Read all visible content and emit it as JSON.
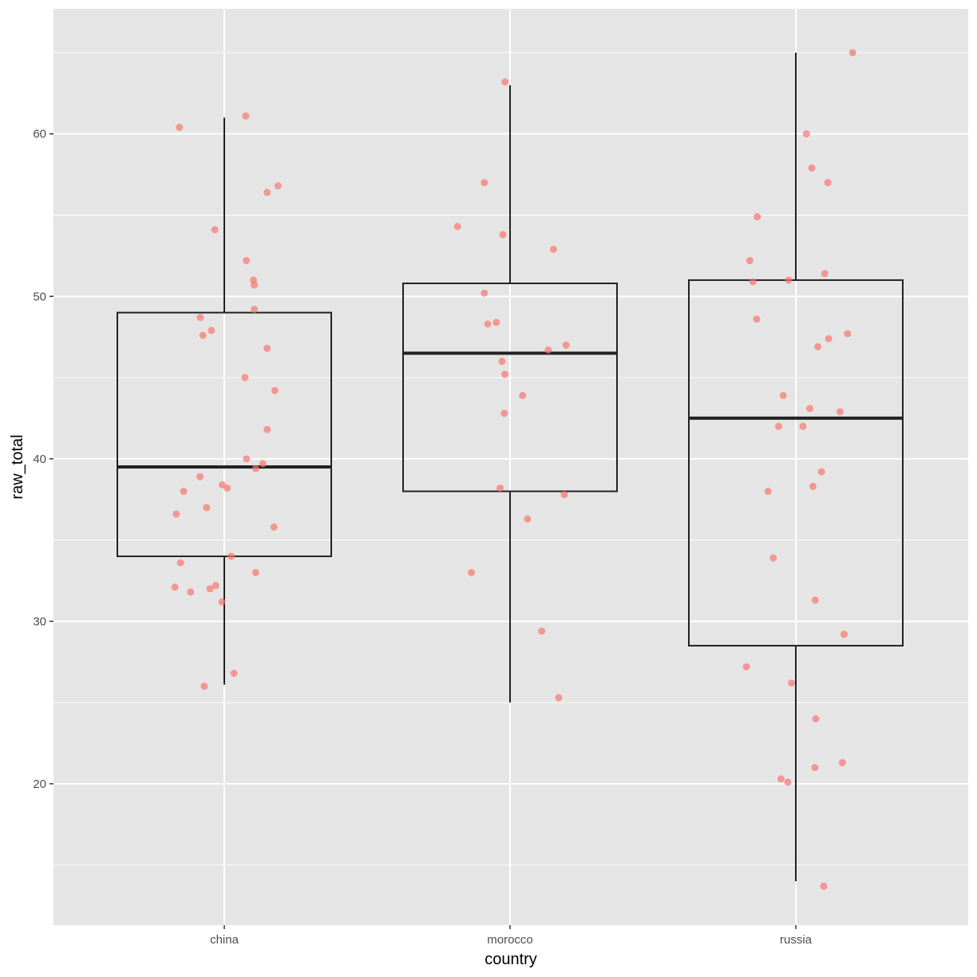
{
  "chart_data": {
    "type": "box",
    "xlabel": "country",
    "ylabel": "raw_total",
    "categories": [
      "china",
      "morocco",
      "russia"
    ],
    "y_ticks": [
      20,
      30,
      40,
      50,
      60
    ],
    "ylim": [
      11.3,
      67.7
    ],
    "grid": true,
    "colors": {
      "panel": "#e5e5e5",
      "grid": "#ffffff",
      "box": "#222222",
      "point": "#f8766d"
    },
    "boxes": [
      {
        "category": "china",
        "whisker_low": 26.1,
        "q1": 34.0,
        "median": 39.5,
        "q3": 49.0,
        "whisker_high": 61.0
      },
      {
        "category": "morocco",
        "whisker_low": 25.0,
        "q1": 38.0,
        "median": 46.5,
        "q3": 50.8,
        "whisker_high": 63.0
      },
      {
        "category": "russia",
        "whisker_low": 14.0,
        "q1": 28.5,
        "median": 42.5,
        "q3": 51.0,
        "whisker_high": 65.0
      }
    ],
    "points": [
      {
        "category": "china",
        "x": -0.157,
        "y": 60.4
      },
      {
        "category": "china",
        "x": 0.075,
        "y": 61.1
      },
      {
        "category": "china",
        "x": 0.188,
        "y": 56.8
      },
      {
        "category": "china",
        "x": 0.15,
        "y": 56.4
      },
      {
        "category": "china",
        "x": -0.033,
        "y": 54.1
      },
      {
        "category": "china",
        "x": 0.077,
        "y": 52.2
      },
      {
        "category": "china",
        "x": 0.102,
        "y": 51.0
      },
      {
        "category": "china",
        "x": 0.105,
        "y": 50.7
      },
      {
        "category": "china",
        "x": 0.105,
        "y": 49.2
      },
      {
        "category": "china",
        "x": -0.084,
        "y": 48.7
      },
      {
        "category": "china",
        "x": -0.045,
        "y": 47.9
      },
      {
        "category": "china",
        "x": -0.075,
        "y": 47.6
      },
      {
        "category": "china",
        "x": 0.15,
        "y": 46.8
      },
      {
        "category": "china",
        "x": 0.072,
        "y": 45.0
      },
      {
        "category": "china",
        "x": 0.177,
        "y": 44.2
      },
      {
        "category": "china",
        "x": 0.15,
        "y": 41.8
      },
      {
        "category": "china",
        "x": 0.078,
        "y": 40.0
      },
      {
        "category": "china",
        "x": 0.135,
        "y": 39.7
      },
      {
        "category": "china",
        "x": 0.11,
        "y": 39.4
      },
      {
        "category": "china",
        "x": -0.085,
        "y": 38.9
      },
      {
        "category": "china",
        "x": -0.007,
        "y": 38.4
      },
      {
        "category": "china",
        "x": 0.01,
        "y": 38.2
      },
      {
        "category": "china",
        "x": -0.142,
        "y": 38.0
      },
      {
        "category": "china",
        "x": -0.062,
        "y": 37.0
      },
      {
        "category": "china",
        "x": -0.168,
        "y": 36.6
      },
      {
        "category": "china",
        "x": 0.174,
        "y": 35.8
      },
      {
        "category": "china",
        "x": 0.024,
        "y": 34.0
      },
      {
        "category": "china",
        "x": -0.153,
        "y": 33.6
      },
      {
        "category": "china",
        "x": 0.11,
        "y": 33.0
      },
      {
        "category": "china",
        "x": -0.173,
        "y": 32.1
      },
      {
        "category": "china",
        "x": -0.03,
        "y": 32.2
      },
      {
        "category": "china",
        "x": -0.05,
        "y": 32.0
      },
      {
        "category": "china",
        "x": -0.118,
        "y": 31.8
      },
      {
        "category": "china",
        "x": -0.008,
        "y": 31.2
      },
      {
        "category": "china",
        "x": 0.034,
        "y": 26.8
      },
      {
        "category": "china",
        "x": -0.07,
        "y": 26.0
      },
      {
        "category": "morocco",
        "x": -0.018,
        "y": 63.2
      },
      {
        "category": "morocco",
        "x": -0.09,
        "y": 57.0
      },
      {
        "category": "morocco",
        "x": -0.184,
        "y": 54.3
      },
      {
        "category": "morocco",
        "x": -0.025,
        "y": 53.8
      },
      {
        "category": "morocco",
        "x": 0.152,
        "y": 52.9
      },
      {
        "category": "morocco",
        "x": -0.09,
        "y": 50.2
      },
      {
        "category": "morocco",
        "x": -0.078,
        "y": 48.3
      },
      {
        "category": "morocco",
        "x": -0.048,
        "y": 48.4
      },
      {
        "category": "morocco",
        "x": 0.196,
        "y": 47.0
      },
      {
        "category": "morocco",
        "x": 0.134,
        "y": 46.7
      },
      {
        "category": "morocco",
        "x": -0.028,
        "y": 46.0
      },
      {
        "category": "morocco",
        "x": -0.018,
        "y": 45.2
      },
      {
        "category": "morocco",
        "x": 0.044,
        "y": 43.9
      },
      {
        "category": "morocco",
        "x": -0.02,
        "y": 42.8
      },
      {
        "category": "morocco",
        "x": -0.035,
        "y": 38.2
      },
      {
        "category": "morocco",
        "x": 0.19,
        "y": 37.8
      },
      {
        "category": "morocco",
        "x": 0.061,
        "y": 36.3
      },
      {
        "category": "morocco",
        "x": -0.135,
        "y": 33.0
      },
      {
        "category": "morocco",
        "x": 0.111,
        "y": 29.4
      },
      {
        "category": "morocco",
        "x": 0.17,
        "y": 25.3
      },
      {
        "category": "russia",
        "x": 0.199,
        "y": 65.0
      },
      {
        "category": "russia",
        "x": 0.037,
        "y": 60.0
      },
      {
        "category": "russia",
        "x": 0.056,
        "y": 57.9
      },
      {
        "category": "russia",
        "x": 0.112,
        "y": 57.0
      },
      {
        "category": "russia",
        "x": -0.135,
        "y": 54.9
      },
      {
        "category": "russia",
        "x": -0.161,
        "y": 52.2
      },
      {
        "category": "russia",
        "x": -0.15,
        "y": 50.9
      },
      {
        "category": "russia",
        "x": -0.025,
        "y": 51.0
      },
      {
        "category": "russia",
        "x": 0.101,
        "y": 51.4
      },
      {
        "category": "russia",
        "x": -0.137,
        "y": 48.6
      },
      {
        "category": "russia",
        "x": 0.181,
        "y": 47.7
      },
      {
        "category": "russia",
        "x": 0.115,
        "y": 47.4
      },
      {
        "category": "russia",
        "x": 0.077,
        "y": 46.9
      },
      {
        "category": "russia",
        "x": -0.044,
        "y": 43.9
      },
      {
        "category": "russia",
        "x": 0.049,
        "y": 43.1
      },
      {
        "category": "russia",
        "x": 0.155,
        "y": 42.9
      },
      {
        "category": "russia",
        "x": -0.06,
        "y": 42.0
      },
      {
        "category": "russia",
        "x": 0.025,
        "y": 42.0
      },
      {
        "category": "russia",
        "x": 0.09,
        "y": 39.2
      },
      {
        "category": "russia",
        "x": -0.097,
        "y": 38.0
      },
      {
        "category": "russia",
        "x": 0.06,
        "y": 38.3
      },
      {
        "category": "russia",
        "x": -0.079,
        "y": 33.9
      },
      {
        "category": "russia",
        "x": 0.068,
        "y": 31.3
      },
      {
        "category": "russia",
        "x": 0.169,
        "y": 29.2
      },
      {
        "category": "russia",
        "x": -0.173,
        "y": 27.2
      },
      {
        "category": "russia",
        "x": -0.015,
        "y": 26.2
      },
      {
        "category": "russia",
        "x": 0.07,
        "y": 24.0
      },
      {
        "category": "russia",
        "x": 0.163,
        "y": 21.3
      },
      {
        "category": "russia",
        "x": 0.067,
        "y": 21.0
      },
      {
        "category": "russia",
        "x": -0.052,
        "y": 20.3
      },
      {
        "category": "russia",
        "x": -0.028,
        "y": 20.1
      },
      {
        "category": "russia",
        "x": 0.098,
        "y": 13.7
      }
    ]
  }
}
